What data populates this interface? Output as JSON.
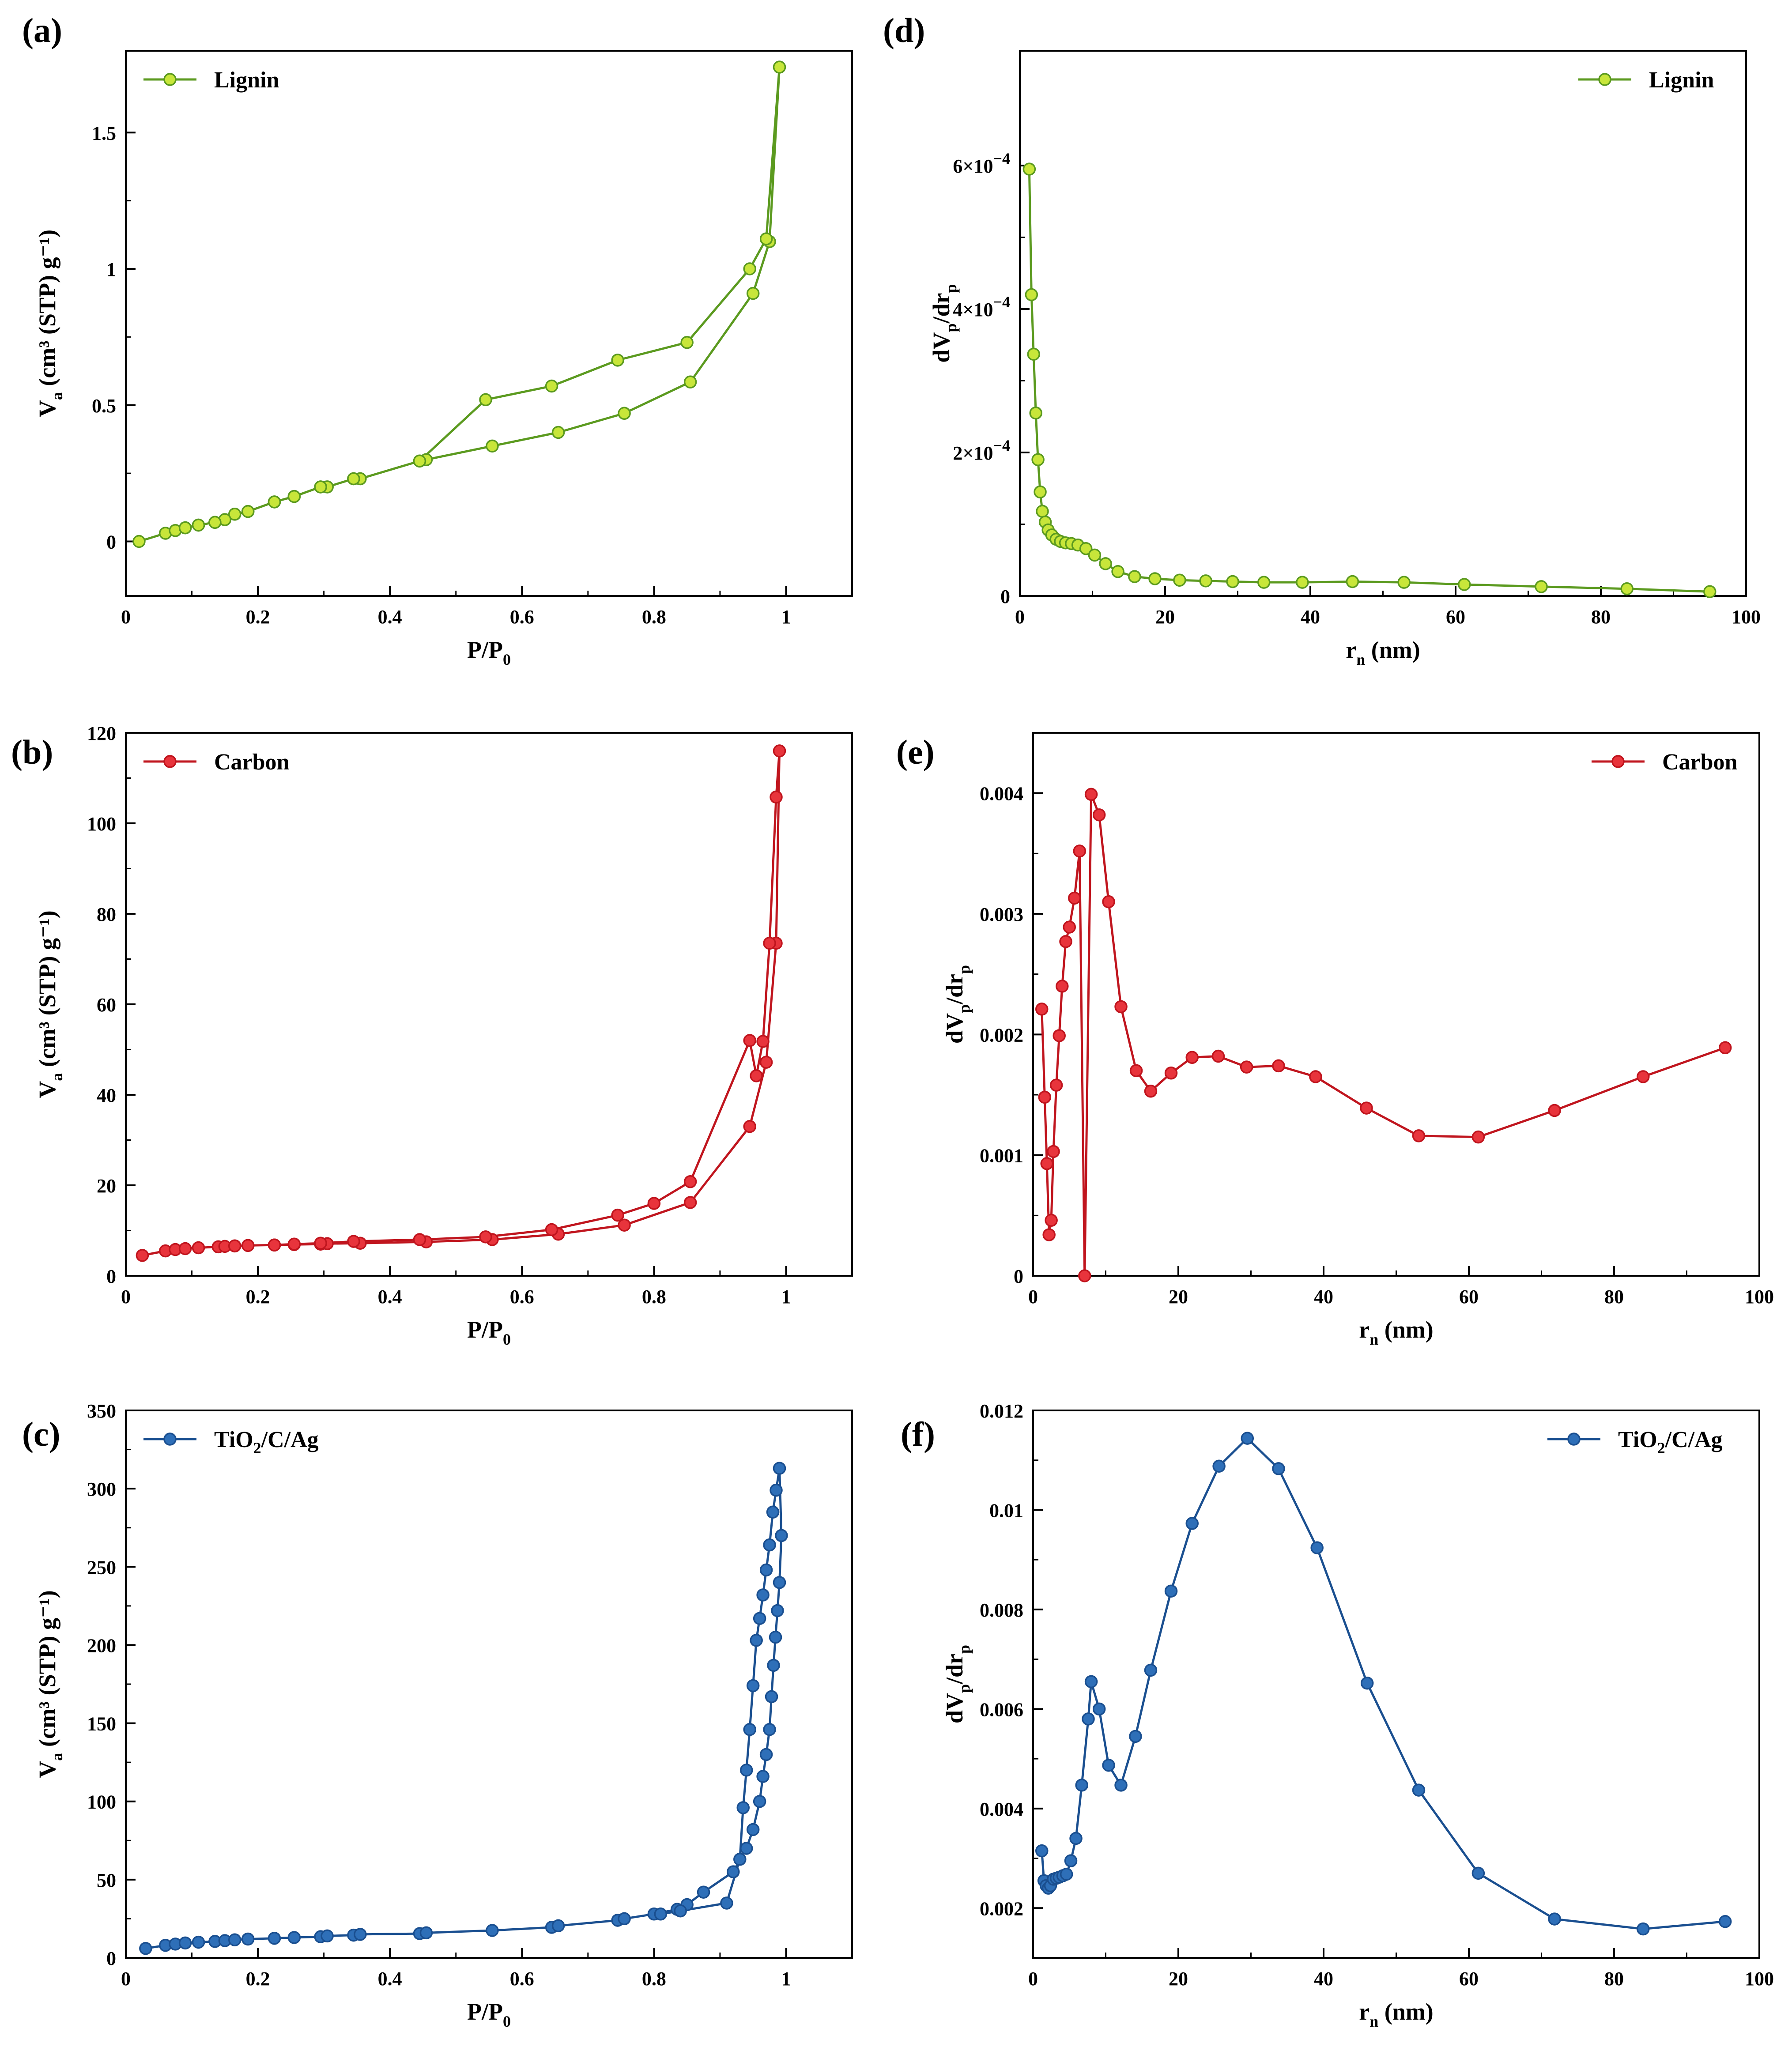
{
  "figure": {
    "colors": {
      "lignin": "#5b9a1f",
      "lignin_marker": "#c8e63a",
      "carbon": "#c0151e",
      "carbon_marker": "#e8343c",
      "tio2": "#1a4f90",
      "tio2_marker": "#2e6fb8"
    }
  },
  "chart_data": [
    {
      "id": "a",
      "panel_label": "(a)",
      "type": "line",
      "title": "",
      "xlabel": "P/P",
      "xlabel_sub": "0",
      "ylabel": "V",
      "ylabel_sub": "a",
      "ylabel_unit": " (cm³ (STP) g⁻¹)",
      "xlim": [
        0,
        1.1
      ],
      "ylim": [
        -0.2,
        1.8
      ],
      "xticks": [
        0,
        0.2,
        0.4,
        0.6,
        0.8,
        1
      ],
      "xtick_labels": [
        "0",
        "0.2",
        "0.4",
        "0.6",
        "0.8",
        "1"
      ],
      "yticks": [
        0,
        0.5,
        1,
        1.5
      ],
      "ytick_labels": [
        "0",
        "0.5",
        "1",
        "1.5"
      ],
      "legend": {
        "label": "Lignin",
        "position": "top-left"
      },
      "series": [
        {
          "name": "Lignin",
          "color_key": "lignin",
          "x": [
            0.02,
            0.06,
            0.075,
            0.09,
            0.11,
            0.135,
            0.15,
            0.165,
            0.185,
            0.225,
            0.255,
            0.295,
            0.305,
            0.345,
            0.355,
            0.445,
            0.455,
            0.555,
            0.655,
            0.755,
            0.855,
            0.95,
            0.975,
            0.99,
            0.97,
            0.945,
            0.85,
            0.745,
            0.645,
            0.545,
            0.445,
            0.355,
            0.345,
            0.305,
            0.295,
            0.255,
            0.225,
            0.185,
            0.165,
            0.15,
            0.135,
            0.11,
            0.09
          ],
          "y": [
            0.0,
            0.03,
            0.04,
            0.05,
            0.06,
            0.07,
            0.08,
            0.1,
            0.11,
            0.145,
            0.165,
            0.2,
            0.2,
            0.23,
            0.23,
            0.295,
            0.3,
            0.35,
            0.4,
            0.47,
            0.585,
            0.91,
            1.1,
            1.74,
            1.11,
            1.0,
            0.73,
            0.665,
            0.57,
            0.52,
            0.295,
            0.23,
            0.23,
            0.2,
            0.2,
            0.165,
            0.145,
            0.11,
            0.1,
            0.08,
            0.07,
            0.06,
            0.05
          ]
        }
      ]
    },
    {
      "id": "b",
      "panel_label": "(b)",
      "type": "line",
      "title": "",
      "xlabel": "P/P",
      "xlabel_sub": "0",
      "ylabel": "V",
      "ylabel_sub": "a",
      "ylabel_unit": " (cm³ (STP) g⁻¹)",
      "xlim": [
        0,
        1.1
      ],
      "ylim": [
        0,
        120
      ],
      "xticks": [
        0,
        0.2,
        0.4,
        0.6,
        0.8,
        1
      ],
      "xtick_labels": [
        "0",
        "0.2",
        "0.4",
        "0.6",
        "0.8",
        "1"
      ],
      "yticks": [
        0,
        20,
        40,
        60,
        80,
        100,
        120
      ],
      "ytick_labels": [
        "0",
        "20",
        "40",
        "60",
        "80",
        "100",
        "120"
      ],
      "legend": {
        "label": "Carbon",
        "position": "top-left"
      },
      "series": [
        {
          "name": "Carbon",
          "color_key": "carbon",
          "x": [
            0.025,
            0.06,
            0.075,
            0.09,
            0.11,
            0.14,
            0.15,
            0.165,
            0.185,
            0.225,
            0.255,
            0.295,
            0.305,
            0.355,
            0.455,
            0.555,
            0.655,
            0.755,
            0.855,
            0.945,
            0.97,
            0.985,
            0.99,
            0.985,
            0.975,
            0.965,
            0.955,
            0.945,
            0.855,
            0.8,
            0.745,
            0.645,
            0.545,
            0.445,
            0.345,
            0.295,
            0.255,
            0.225,
            0.185,
            0.165
          ],
          "y": [
            4.5,
            5.5,
            5.8,
            6.0,
            6.2,
            6.4,
            6.5,
            6.6,
            6.7,
            6.8,
            6.9,
            7.0,
            7.1,
            7.2,
            7.5,
            8.0,
            9.2,
            11.2,
            16.2,
            33.0,
            47.2,
            73.5,
            116.0,
            105.8,
            73.5,
            51.8,
            44.2,
            52.0,
            20.8,
            16.0,
            13.4,
            10.2,
            8.6,
            8.0,
            7.6,
            7.2,
            7.0,
            6.8,
            6.7,
            6.6
          ]
        }
      ]
    },
    {
      "id": "c",
      "panel_label": "(c)",
      "type": "line",
      "title": "",
      "xlabel": "P/P",
      "xlabel_sub": "0",
      "ylabel": "V",
      "ylabel_sub": "a",
      "ylabel_unit": " (cm³ (STP) g⁻¹)",
      "xlim": [
        0,
        1.1
      ],
      "ylim": [
        0,
        350
      ],
      "xticks": [
        0,
        0.2,
        0.4,
        0.6,
        0.8,
        1
      ],
      "xtick_labels": [
        "0",
        "0.2",
        "0.4",
        "0.6",
        "0.8",
        "1"
      ],
      "yticks": [
        0,
        50,
        100,
        150,
        200,
        250,
        300,
        350
      ],
      "ytick_labels": [
        "0",
        "50",
        "100",
        "150",
        "200",
        "250",
        "300",
        "350"
      ],
      "legend": {
        "label": "TiO",
        "label_sub": "2",
        "label_rest": "/C/Ag",
        "position": "top-left"
      },
      "series": [
        {
          "name": "TiO2/C/Ag",
          "color_key": "tio2",
          "x": [
            0.03,
            0.06,
            0.075,
            0.09,
            0.11,
            0.135,
            0.15,
            0.165,
            0.185,
            0.225,
            0.255,
            0.295,
            0.305,
            0.345,
            0.355,
            0.445,
            0.455,
            0.555,
            0.645,
            0.655,
            0.745,
            0.755,
            0.8,
            0.835,
            0.85,
            0.875,
            0.92,
            0.94,
            0.95,
            0.96,
            0.965,
            0.97,
            0.975,
            0.978,
            0.981,
            0.984,
            0.987,
            0.99,
            0.993,
            0.99,
            0.985,
            0.98,
            0.975,
            0.97,
            0.965,
            0.96,
            0.955,
            0.95,
            0.945,
            0.94,
            0.935,
            0.93,
            0.91,
            0.84,
            0.81
          ],
          "y": [
            6,
            8,
            8.8,
            9.5,
            10,
            10.5,
            11,
            11.5,
            12,
            12.5,
            13,
            13.5,
            14,
            14.5,
            15,
            15.5,
            16,
            17.5,
            19.5,
            20.5,
            24,
            25,
            28,
            31,
            34,
            42,
            55,
            70,
            82,
            100,
            116,
            130,
            146,
            167,
            187,
            205,
            222,
            240,
            270,
            313,
            299,
            285,
            264,
            248,
            232,
            217,
            203,
            174,
            146,
            120,
            96,
            63,
            35,
            30,
            28
          ]
        }
      ]
    },
    {
      "id": "d",
      "panel_label": "(d)",
      "type": "line",
      "title": "",
      "xlabel": "r",
      "xlabel_sub": "n",
      "xlabel_unit": " (nm)",
      "ylabel": "dV",
      "ylabel_sub": "p",
      "ylabel_unit": "/dr",
      "ylabel_sub2": "p",
      "xlim": [
        0,
        100
      ],
      "ylim": [
        0,
        0.00076
      ],
      "xticks": [
        0,
        20,
        40,
        60,
        80,
        100
      ],
      "xtick_labels": [
        "0",
        "20",
        "40",
        "60",
        "80",
        "100"
      ],
      "yticks": [
        0,
        0.0002,
        0.0004,
        0.0006
      ],
      "ytick_labels": [
        "0",
        "2×10",
        "4×10",
        "6×10"
      ],
      "ytick_exponent": "−4",
      "legend": {
        "label": "Lignin",
        "position": "top-right"
      },
      "series": [
        {
          "name": "Lignin",
          "color_key": "lignin",
          "x": [
            1.3,
            1.6,
            1.9,
            2.2,
            2.5,
            2.8,
            3.1,
            3.5,
            3.9,
            4.4,
            5.0,
            5.6,
            6.3,
            7.1,
            8.0,
            9.1,
            10.3,
            11.8,
            13.5,
            15.8,
            18.6,
            22.0,
            25.6,
            29.3,
            33.6,
            38.9,
            45.8,
            52.9,
            61.2,
            71.8,
            83.6,
            95.0
          ],
          "y": [
            0.000595,
            0.00042,
            0.000337,
            0.000255,
            0.00019,
            0.000145,
            0.000118,
            0.000103,
            9.2e-05,
            8.5e-05,
            7.9e-05,
            7.6e-05,
            7.4e-05,
            7.3e-05,
            7.1e-05,
            6.6e-05,
            5.7e-05,
            4.5e-05,
            3.4e-05,
            2.7e-05,
            2.4e-05,
            2.2e-05,
            2.1e-05,
            2e-05,
            1.9e-05,
            1.9e-05,
            2e-05,
            1.9e-05,
            1.6e-05,
            1.3e-05,
            1e-05,
            6e-06
          ]
        }
      ]
    },
    {
      "id": "e",
      "panel_label": "(e)",
      "type": "line",
      "title": "",
      "xlabel": "r",
      "xlabel_sub": "n",
      "xlabel_unit": " (nm)",
      "ylabel": "dV",
      "ylabel_sub": "p",
      "ylabel_unit": "/dr",
      "ylabel_sub2": "p",
      "xlim": [
        0,
        100
      ],
      "ylim": [
        0,
        0.0045
      ],
      "xticks": [
        0,
        20,
        40,
        60,
        80,
        100
      ],
      "xtick_labels": [
        "0",
        "20",
        "40",
        "60",
        "80",
        "100"
      ],
      "yticks": [
        0,
        0.001,
        0.002,
        0.003,
        0.004
      ],
      "ytick_labels": [
        "0",
        "0.001",
        "0.002",
        "0.003",
        "0.004"
      ],
      "legend": {
        "label": "Carbon",
        "position": "top-right"
      },
      "series": [
        {
          "name": "Carbon",
          "color_key": "carbon",
          "x": [
            1.2,
            1.6,
            1.9,
            2.2,
            2.5,
            2.8,
            3.2,
            3.6,
            4.0,
            4.5,
            5.0,
            5.7,
            6.4,
            7.1,
            8.0,
            9.1,
            10.4,
            12.1,
            14.2,
            16.2,
            19.0,
            21.9,
            25.5,
            29.4,
            33.8,
            38.9,
            45.9,
            53.1,
            61.3,
            71.8,
            84.0,
            95.3
          ],
          "y": [
            0.00221,
            0.00148,
            0.00093,
            0.00034,
            0.00046,
            0.00103,
            0.00158,
            0.00199,
            0.0024,
            0.00277,
            0.00289,
            0.00313,
            0.00352,
            0.0,
            0.00399,
            0.00382,
            0.0031,
            0.00223,
            0.0017,
            0.00153,
            0.00168,
            0.00181,
            0.00182,
            0.00173,
            0.00174,
            0.00165,
            0.00139,
            0.00116,
            0.00115,
            0.00137,
            0.00165,
            0.00189
          ]
        }
      ]
    },
    {
      "id": "f",
      "panel_label": "(f)",
      "type": "line",
      "title": "",
      "xlabel": "r",
      "xlabel_sub": "n",
      "xlabel_unit": " (nm)",
      "ylabel": "dV",
      "ylabel_sub": "p",
      "ylabel_unit": "/dr",
      "ylabel_sub2": "p",
      "xlim": [
        0,
        100
      ],
      "ylim": [
        0.001,
        0.012
      ],
      "xticks": [
        0,
        20,
        40,
        60,
        80,
        100
      ],
      "xtick_labels": [
        "0",
        "20",
        "40",
        "60",
        "80",
        "100"
      ],
      "yticks": [
        0.002,
        0.004,
        0.006,
        0.008,
        0.01,
        0.012
      ],
      "ytick_labels": [
        "0.002",
        "0.004",
        "0.006",
        "0.008",
        "0.01",
        "0.012"
      ],
      "legend": {
        "label": "TiO",
        "label_sub": "2",
        "label_rest": "/C/Ag",
        "position": "top-right"
      },
      "series": [
        {
          "name": "TiO2/C/Ag",
          "color_key": "tio2",
          "x": [
            1.2,
            1.5,
            1.8,
            2.1,
            2.4,
            2.8,
            3.2,
            3.6,
            4.1,
            4.6,
            5.2,
            5.9,
            6.7,
            7.6,
            8.0,
            9.1,
            10.4,
            12.1,
            14.1,
            16.2,
            19.0,
            21.9,
            25.6,
            29.5,
            33.8,
            39.1,
            46.0,
            53.1,
            61.3,
            71.8,
            84.0,
            95.3
          ],
          "y": [
            0.00315,
            0.00255,
            0.00245,
            0.0024,
            0.00245,
            0.00258,
            0.0026,
            0.00262,
            0.00265,
            0.00268,
            0.00295,
            0.0034,
            0.00447,
            0.0058,
            0.00655,
            0.006,
            0.00487,
            0.00447,
            0.00545,
            0.00678,
            0.00837,
            0.00973,
            0.01088,
            0.01144,
            0.01083,
            0.00924,
            0.00652,
            0.00437,
            0.0027,
            0.00178,
            0.00158,
            0.00173
          ]
        }
      ]
    }
  ]
}
